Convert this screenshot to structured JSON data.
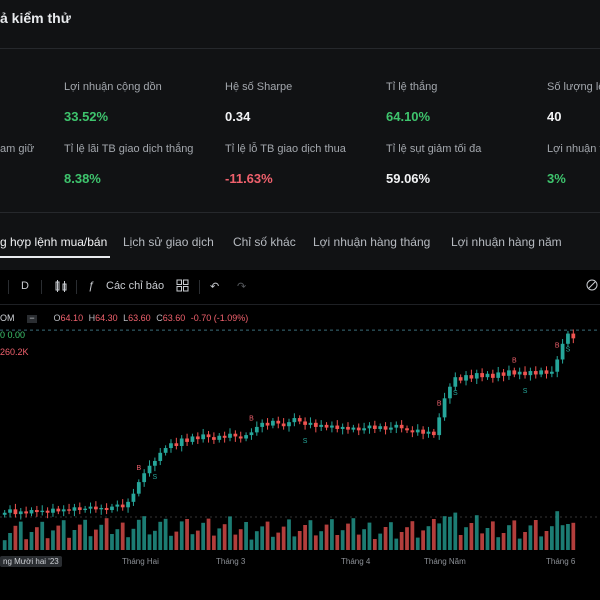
{
  "header": {
    "title": "ả kiểm thử"
  },
  "metrics": {
    "row1": [
      {
        "label": "Lợi nhuận cộng dồn",
        "value": "33.52%",
        "tone": "pos"
      },
      {
        "label": "Hệ số Sharpe",
        "value": "0.34",
        "tone": "neu"
      },
      {
        "label": "Tỉ lệ thắng",
        "value": "64.10%",
        "tone": "pos"
      },
      {
        "label": "Số lượng lệ",
        "value": "40",
        "tone": "neu"
      }
    ],
    "row2": [
      {
        "label": "Tỉ lệ lãi TB giao dịch thắng",
        "value": "8.38%",
        "tone": "pos"
      },
      {
        "label": "Tỉ lệ lỗ TB giao dịch thua",
        "value": "-11.63%",
        "tone": "neg"
      },
      {
        "label": "Tỉ lệ sụt giảm tối đa",
        "value": "59.06%",
        "tone": "neu"
      },
      {
        "label": "Lợi nhuận t",
        "value": "3%",
        "tone": "pos"
      }
    ],
    "left_partial_label": "am giữ"
  },
  "tabs": [
    {
      "label": "g hợp lệnh mua/bán",
      "active": true
    },
    {
      "label": "Lịch sử giao dịch",
      "active": false
    },
    {
      "label": "Chỉ số khác",
      "active": false
    },
    {
      "label": "Lợi nhuận hàng tháng",
      "active": false
    },
    {
      "label": "Lợi nhuận hàng năm",
      "active": false
    }
  ],
  "toolbar": {
    "interval": "D",
    "indicators_label": "Các chỉ báo",
    "icons": [
      "candles-icon",
      "function-icon",
      "grid-icon",
      "undo-icon",
      "redo-icon",
      "camera-icon"
    ]
  },
  "legend": {
    "symbol": "OM",
    "o_key": "O",
    "o_val": "64.10",
    "h_key": "H",
    "h_val": "64.30",
    "l_key": "L",
    "l_val": "63.60",
    "c_key": "C",
    "c_val": "63.60",
    "change": "-0.70 (-1.09%)",
    "row2": "0  0.00",
    "volume": "260.2K"
  },
  "x_axis": [
    "ng Mười hai '23",
    "Tháng Hai",
    "Tháng 3",
    "Tháng 4",
    "Tháng Năm",
    "Tháng 6"
  ],
  "colors": {
    "up": "#26a69a",
    "down": "#ef5350",
    "accent_pos": "#3ec46d",
    "accent_neg": "#f0616d"
  },
  "chart_data": {
    "type": "candlestick",
    "closes": [
      38,
      38.5,
      37.8,
      38.2,
      37.9,
      38.4,
      38.1,
      38.3,
      38,
      38.6,
      38.2,
      38.5,
      38.3,
      38.8,
      38.4,
      38.6,
      38.9,
      38.5,
      38.7,
      38.4,
      38.9,
      39.2,
      38.8,
      39.6,
      40.8,
      42.5,
      43.8,
      44.9,
      45.6,
      46.8,
      47.5,
      48.2,
      47.8,
      48.9,
      48.4,
      49.2,
      48.8,
      49.5,
      49.1,
      48.7,
      49.3,
      49,
      49.6,
      49.2,
      48.9,
      49.4,
      49.8,
      50.6,
      51.2,
      50.8,
      51.5,
      51.1,
      50.7,
      51.3,
      51.9,
      51.4,
      50.9,
      51.2,
      50.6,
      50.9,
      50.5,
      50.8,
      50.3,
      50.6,
      50.2,
      50.5,
      50.1,
      50.4,
      50.8,
      50.3,
      50.7,
      50.2,
      50.5,
      50.9,
      50.4,
      50.1,
      49.8,
      50.2,
      49.6,
      49.9,
      49.4,
      52,
      54.8,
      56.5,
      57.9,
      57.4,
      58.2,
      57.7,
      58.5,
      57.9,
      58.4,
      57.8,
      58.6,
      58.1,
      58.9,
      58.3,
      58.7,
      58.2,
      58.8,
      58.3,
      58.9,
      58.4,
      58.7,
      60.5,
      62.8,
      64.3,
      63.6
    ],
    "trade_markers": [
      "B",
      "S",
      "B",
      "S",
      "B",
      "S",
      "B",
      "S",
      "B",
      "S"
    ]
  }
}
